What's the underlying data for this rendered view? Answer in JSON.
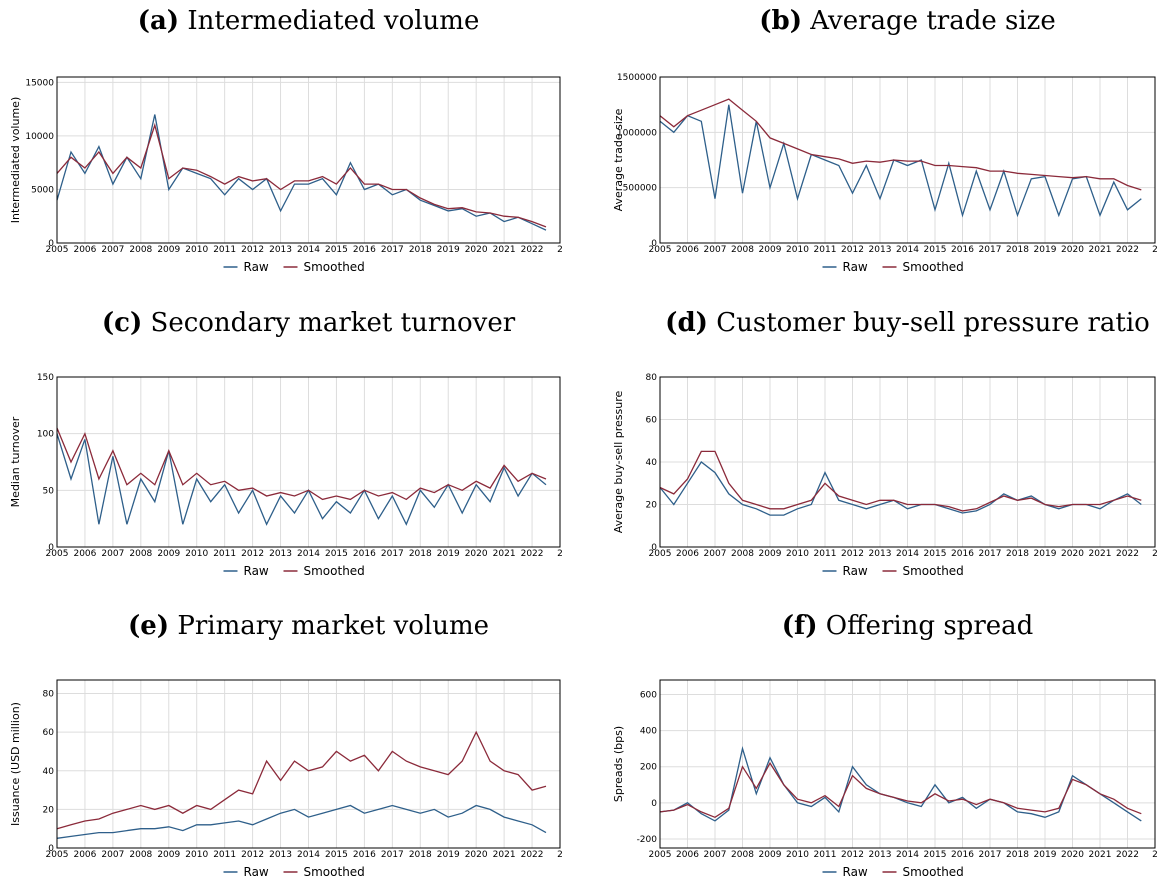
{
  "chart_data": [
    {
      "type": "line",
      "panel": "(a)",
      "title": "Intermediated volume",
      "y_label": "Intermediated volume)",
      "x": [
        2005,
        2005.5,
        2006,
        2006.5,
        2007,
        2007.5,
        2008,
        2008.5,
        2009,
        2009.5,
        2010,
        2010.5,
        2011,
        2011.5,
        2012,
        2012.5,
        2013,
        2013.5,
        2014,
        2014.5,
        2015,
        2015.5,
        2016,
        2016.5,
        2017,
        2017.5,
        2018,
        2018.5,
        2019,
        2019.5,
        2020,
        2020.5,
        2021,
        2021.5,
        2022,
        2022.5
      ],
      "xlim": [
        2005,
        2023
      ],
      "xticks": [
        2005,
        2006,
        2007,
        2008,
        2009,
        2010,
        2011,
        2012,
        2013,
        2014,
        2015,
        2016,
        2017,
        2018,
        2019,
        2020,
        2021,
        2022,
        {
          "value": 2023,
          "label": "2"
        }
      ],
      "ylim": [
        0,
        15500
      ],
      "yticks": [
        0,
        5000,
        10000,
        15000
      ],
      "grid": true,
      "series": [
        {
          "name": "Raw",
          "color": "#2e5f8a",
          "values": [
            4000,
            8500,
            6500,
            9000,
            5500,
            8000,
            6000,
            12000,
            5000,
            7000,
            6500,
            6000,
            4500,
            6000,
            5000,
            6000,
            3000,
            5500,
            5500,
            6000,
            4500,
            7500,
            5000,
            5500,
            4500,
            5000,
            4000,
            3500,
            3000,
            3200,
            2500,
            2800,
            2000,
            2400,
            1800,
            1200
          ]
        },
        {
          "name": "Smoothed",
          "color": "#8b2a3a",
          "values": [
            6500,
            8000,
            7000,
            8500,
            6500,
            8000,
            7000,
            11000,
            6000,
            7000,
            6800,
            6200,
            5500,
            6200,
            5800,
            6000,
            5000,
            5800,
            5800,
            6200,
            5500,
            7000,
            5500,
            5500,
            5000,
            5000,
            4200,
            3600,
            3200,
            3300,
            2900,
            2800,
            2500,
            2400,
            2000,
            1500
          ]
        }
      ]
    },
    {
      "type": "line",
      "panel": "(b)",
      "title": "Average trade size",
      "y_label": "Average trade size",
      "x": [
        2005,
        2005.5,
        2006,
        2006.5,
        2007,
        2007.5,
        2008,
        2008.5,
        2009,
        2009.5,
        2010,
        2010.5,
        2011,
        2011.5,
        2012,
        2012.5,
        2013,
        2013.5,
        2014,
        2014.5,
        2015,
        2015.5,
        2016,
        2016.5,
        2017,
        2017.5,
        2018,
        2018.5,
        2019,
        2019.5,
        2020,
        2020.5,
        2021,
        2021.5,
        2022,
        2022.5
      ],
      "xlim": [
        2005,
        2023
      ],
      "xticks": [
        2005,
        2006,
        2007,
        2008,
        2009,
        2010,
        2011,
        2012,
        2013,
        2014,
        2015,
        2016,
        2017,
        2018,
        2019,
        2020,
        2021,
        2022,
        {
          "value": 2023,
          "label": "2"
        }
      ],
      "ylim": [
        0,
        1500000
      ],
      "yticks": [
        0,
        500000,
        1000000,
        1500000
      ],
      "grid": true,
      "series": [
        {
          "name": "Raw",
          "color": "#2e5f8a",
          "values": [
            1100000,
            1000000,
            1150000,
            1100000,
            400000,
            1250000,
            450000,
            1100000,
            500000,
            900000,
            400000,
            800000,
            750000,
            700000,
            450000,
            700000,
            400000,
            750000,
            700000,
            750000,
            300000,
            720000,
            250000,
            650000,
            300000,
            650000,
            250000,
            580000,
            600000,
            250000,
            580000,
            600000,
            250000,
            550000,
            300000,
            400000
          ]
        },
        {
          "name": "Smoothed",
          "color": "#8b2a3a",
          "values": [
            1150000,
            1050000,
            1150000,
            1200000,
            1250000,
            1300000,
            1200000,
            1100000,
            950000,
            900000,
            850000,
            800000,
            780000,
            760000,
            720000,
            740000,
            730000,
            750000,
            740000,
            740000,
            700000,
            700000,
            690000,
            680000,
            650000,
            650000,
            630000,
            620000,
            610000,
            600000,
            590000,
            600000,
            580000,
            580000,
            520000,
            480000
          ]
        }
      ]
    },
    {
      "type": "line",
      "panel": "(c)",
      "title": "Secondary market turnover",
      "y_label": "Median turnover",
      "x": [
        2005,
        2005.5,
        2006,
        2006.5,
        2007,
        2007.5,
        2008,
        2008.5,
        2009,
        2009.5,
        2010,
        2010.5,
        2011,
        2011.5,
        2012,
        2012.5,
        2013,
        2013.5,
        2014,
        2014.5,
        2015,
        2015.5,
        2016,
        2016.5,
        2017,
        2017.5,
        2018,
        2018.5,
        2019,
        2019.5,
        2020,
        2020.5,
        2021,
        2021.5,
        2022,
        2022.5
      ],
      "xlim": [
        2005,
        2023
      ],
      "xticks": [
        2005,
        2006,
        2007,
        2008,
        2009,
        2010,
        2011,
        2012,
        2013,
        2014,
        2015,
        2016,
        2017,
        2018,
        2019,
        2020,
        2021,
        2022,
        {
          "value": 2023,
          "label": "2"
        }
      ],
      "ylim": [
        0,
        150
      ],
      "yticks": [
        0,
        50,
        100,
        150
      ],
      "grid": true,
      "series": [
        {
          "name": "Raw",
          "color": "#2e5f8a",
          "values": [
            100,
            60,
            95,
            20,
            80,
            20,
            60,
            40,
            85,
            20,
            60,
            40,
            55,
            30,
            50,
            20,
            45,
            30,
            50,
            25,
            40,
            30,
            50,
            25,
            45,
            20,
            50,
            35,
            55,
            30,
            55,
            40,
            70,
            45,
            65,
            55
          ]
        },
        {
          "name": "Smoothed",
          "color": "#8b2a3a",
          "values": [
            105,
            75,
            100,
            60,
            85,
            55,
            65,
            55,
            85,
            55,
            65,
            55,
            58,
            50,
            52,
            45,
            48,
            45,
            50,
            42,
            45,
            42,
            50,
            45,
            48,
            42,
            52,
            48,
            55,
            50,
            58,
            52,
            72,
            58,
            65,
            60
          ]
        }
      ]
    },
    {
      "type": "line",
      "panel": "(d)",
      "title": "Customer buy-sell pressure ratio",
      "y_label": "Average buy-sell pressure",
      "x": [
        2005,
        2005.5,
        2006,
        2006.5,
        2007,
        2007.5,
        2008,
        2008.5,
        2009,
        2009.5,
        2010,
        2010.5,
        2011,
        2011.5,
        2012,
        2012.5,
        2013,
        2013.5,
        2014,
        2014.5,
        2015,
        2015.5,
        2016,
        2016.5,
        2017,
        2017.5,
        2018,
        2018.5,
        2019,
        2019.5,
        2020,
        2020.5,
        2021,
        2021.5,
        2022,
        2022.5
      ],
      "xlim": [
        2005,
        2023
      ],
      "xticks": [
        2005,
        2006,
        2007,
        2008,
        2009,
        2010,
        2011,
        2012,
        2013,
        2014,
        2015,
        2016,
        2017,
        2018,
        2019,
        2020,
        2021,
        2022,
        {
          "value": 2023,
          "label": "2"
        }
      ],
      "ylim": [
        0,
        80
      ],
      "yticks": [
        0,
        20,
        40,
        60,
        80
      ],
      "grid": true,
      "series": [
        {
          "name": "Raw",
          "color": "#2e5f8a",
          "values": [
            28,
            20,
            30,
            40,
            35,
            25,
            20,
            18,
            15,
            15,
            18,
            20,
            35,
            22,
            20,
            18,
            20,
            22,
            18,
            20,
            20,
            18,
            16,
            17,
            20,
            25,
            22,
            24,
            20,
            18,
            20,
            20,
            18,
            22,
            25,
            20
          ]
        },
        {
          "name": "Smoothed",
          "color": "#8b2a3a",
          "values": [
            28,
            25,
            32,
            45,
            45,
            30,
            22,
            20,
            18,
            18,
            20,
            22,
            30,
            24,
            22,
            20,
            22,
            22,
            20,
            20,
            20,
            19,
            17,
            18,
            21,
            24,
            22,
            23,
            20,
            19,
            20,
            20,
            20,
            22,
            24,
            22
          ]
        }
      ]
    },
    {
      "type": "line",
      "panel": "(e)",
      "title": "Primary market volume",
      "y_label": "Issuance (USD million)",
      "x": [
        2005,
        2005.5,
        2006,
        2006.5,
        2007,
        2007.5,
        2008,
        2008.5,
        2009,
        2009.5,
        2010,
        2010.5,
        2011,
        2011.5,
        2012,
        2012.5,
        2013,
        2013.5,
        2014,
        2014.5,
        2015,
        2015.5,
        2016,
        2016.5,
        2017,
        2017.5,
        2018,
        2018.5,
        2019,
        2019.5,
        2020,
        2020.5,
        2021,
        2021.5,
        2022,
        2022.5
      ],
      "xlim": [
        2005,
        2023
      ],
      "xticks": [
        2005,
        2006,
        2007,
        2008,
        2009,
        2010,
        2011,
        2012,
        2013,
        2014,
        2015,
        2016,
        2017,
        2018,
        2019,
        2020,
        2021,
        2022,
        {
          "value": 2023,
          "label": "2"
        }
      ],
      "ylim": [
        0,
        87
      ],
      "yticks": [
        0,
        20,
        40,
        60,
        80
      ],
      "grid": true,
      "series": [
        {
          "name": "Raw",
          "color": "#2e5f8a",
          "values": [
            5,
            6,
            7,
            8,
            8,
            9,
            10,
            10,
            11,
            9,
            12,
            12,
            13,
            14,
            12,
            15,
            18,
            20,
            16,
            18,
            20,
            22,
            18,
            20,
            22,
            20,
            18,
            20,
            16,
            18,
            22,
            20,
            16,
            14,
            12,
            8
          ]
        },
        {
          "name": "Smoothed",
          "color": "#8b2a3a",
          "values": [
            10,
            12,
            14,
            15,
            18,
            20,
            22,
            20,
            22,
            18,
            22,
            20,
            25,
            30,
            28,
            45,
            35,
            45,
            40,
            42,
            50,
            45,
            48,
            40,
            50,
            45,
            42,
            40,
            38,
            45,
            60,
            45,
            40,
            38,
            30,
            32
          ]
        }
      ]
    },
    {
      "type": "line",
      "panel": "(f)",
      "title": "Offering spread",
      "y_label": "Spreads (bps)",
      "x": [
        2005,
        2005.5,
        2006,
        2006.5,
        2007,
        2007.5,
        2008,
        2008.5,
        2009,
        2009.5,
        2010,
        2010.5,
        2011,
        2011.5,
        2012,
        2012.5,
        2013,
        2013.5,
        2014,
        2014.5,
        2015,
        2015.5,
        2016,
        2016.5,
        2017,
        2017.5,
        2018,
        2018.5,
        2019,
        2019.5,
        2020,
        2020.5,
        2021,
        2021.5,
        2022,
        2022.5
      ],
      "xlim": [
        2005,
        2023
      ],
      "xticks": [
        2005,
        2006,
        2007,
        2008,
        2009,
        2010,
        2011,
        2012,
        2013,
        2014,
        2015,
        2016,
        2017,
        2018,
        2019,
        2020,
        2021,
        2022,
        {
          "value": 2023,
          "label": "2"
        }
      ],
      "ylim": [
        -250,
        680
      ],
      "yticks": [
        -200,
        0,
        200,
        400,
        600
      ],
      "grid": true,
      "series": [
        {
          "name": "Raw",
          "color": "#2e5f8a",
          "values": [
            -50,
            -40,
            0,
            -60,
            -100,
            -40,
            300,
            50,
            250,
            100,
            0,
            -20,
            30,
            -50,
            200,
            100,
            50,
            30,
            0,
            -20,
            100,
            0,
            30,
            -30,
            20,
            0,
            -50,
            -60,
            -80,
            -50,
            150,
            100,
            50,
            0,
            -50,
            -100
          ]
        },
        {
          "name": "Smoothed",
          "color": "#8b2a3a",
          "values": [
            -50,
            -40,
            -10,
            -50,
            -80,
            -30,
            200,
            80,
            220,
            100,
            20,
            0,
            40,
            -20,
            150,
            80,
            50,
            30,
            10,
            0,
            50,
            10,
            20,
            -10,
            20,
            0,
            -30,
            -40,
            -50,
            -30,
            130,
            100,
            50,
            20,
            -30,
            -60
          ]
        }
      ]
    }
  ]
}
